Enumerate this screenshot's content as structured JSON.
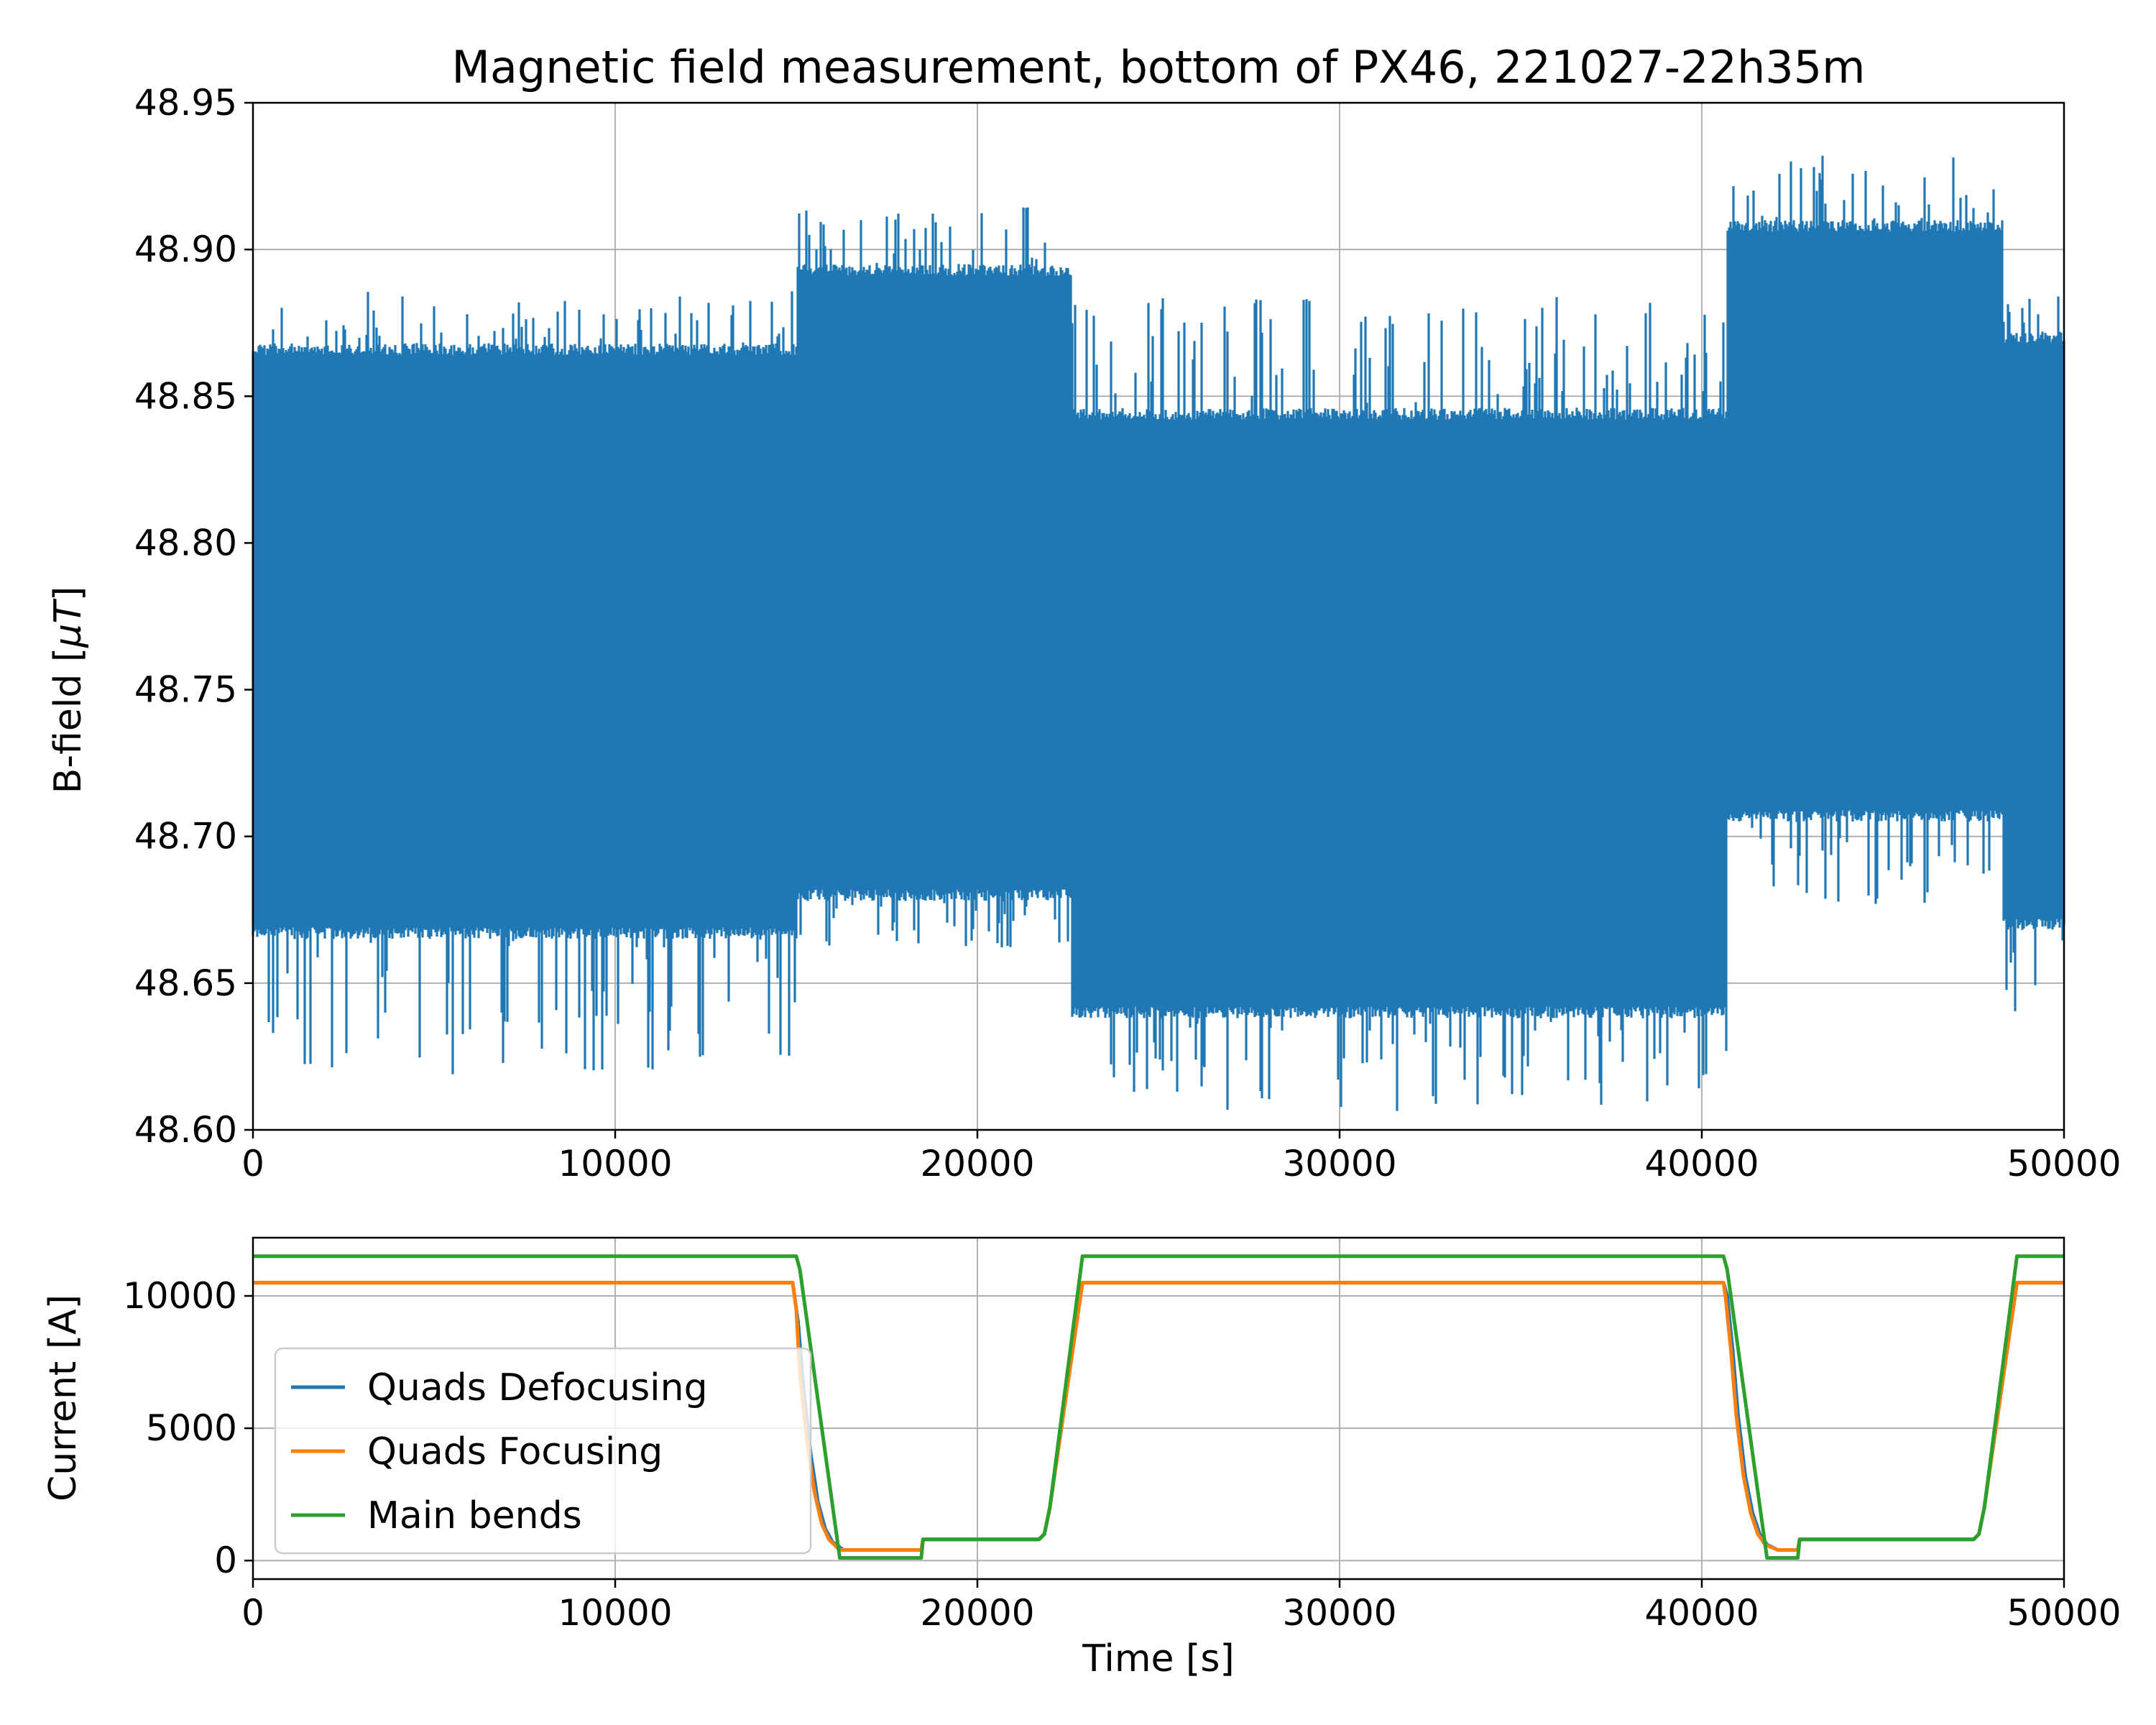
{
  "chart_data": [
    {
      "type": "line",
      "title": "Magnetic field measurement, bottom of PX46, 221027-22h35m",
      "xlabel": "",
      "ylabel": "B-field [μT]",
      "ylabel_prefix": "B-field [",
      "ylabel_unit": "μT",
      "ylabel_suffix": "]",
      "xlim": [
        0,
        50000
      ],
      "ylim": [
        48.6,
        48.95
      ],
      "xticks": [
        "0",
        "10000",
        "20000",
        "30000",
        "40000",
        "50000"
      ],
      "yticks": [
        "48.60",
        "48.65",
        "48.70",
        "48.75",
        "48.80",
        "48.85",
        "48.90",
        "48.95"
      ],
      "grid": true,
      "color": "#1f77b4",
      "series": [
        {
          "envelope": true,
          "segments": [
            {
              "x": [
                0,
                15000
              ],
              "typical_low": 48.665,
              "typical_high": 48.868,
              "spike_low": 48.617,
              "spike_high": 48.887
            },
            {
              "x": [
                15000,
                22600
              ],
              "typical_low": 48.678,
              "typical_high": 48.895,
              "spike_low": 48.662,
              "spike_high": 48.915
            },
            {
              "x": [
                22600,
                40700
              ],
              "typical_low": 48.638,
              "typical_high": 48.846,
              "spike_low": 48.606,
              "spike_high": 48.885
            },
            {
              "x": [
                40700,
                48300
              ],
              "typical_low": 48.705,
              "typical_high": 48.91,
              "spike_low": 48.677,
              "spike_high": 48.932
            },
            {
              "x": [
                48300,
                50000
              ],
              "typical_low": 48.668,
              "typical_high": 48.872,
              "spike_low": 48.64,
              "spike_high": 48.885
            }
          ]
        }
      ]
    },
    {
      "type": "line",
      "title": "",
      "xlabel": "Time [s]",
      "ylabel": "Current [A]",
      "xlim": [
        0,
        50000
      ],
      "ylim": [
        -700,
        12200
      ],
      "xticks": [
        "0",
        "10000",
        "20000",
        "30000",
        "40000",
        "50000"
      ],
      "yticks": [
        {
          "value": 0,
          "label": "0"
        },
        {
          "value": 5000,
          "label": "5000"
        },
        {
          "value": 10000,
          "label": "10000"
        }
      ],
      "grid": true,
      "legend_position": "lower-left",
      "series": [
        {
          "name": "Quads Defocusing",
          "color": "#1f77b4",
          "x": [
            0,
            14900,
            15050,
            15200,
            15400,
            15600,
            15800,
            16000,
            16300,
            18450,
            18500,
            21700,
            21850,
            22000,
            22900,
            40600,
            40700,
            40850,
            41000,
            41200,
            41400,
            41600,
            41800,
            42100,
            42650,
            42700,
            47500,
            47650,
            47800,
            48700,
            50000
          ],
          "y": [
            10500,
            10500,
            9000,
            6500,
            4000,
            2200,
            1200,
            700,
            400,
            400,
            800,
            800,
            1000,
            2000,
            10500,
            10500,
            10000,
            8000,
            5500,
            3200,
            1800,
            1000,
            600,
            400,
            400,
            800,
            800,
            1000,
            2000,
            10500,
            10500
          ]
        },
        {
          "name": "Quads Focusing",
          "color": "#ff7f0e",
          "x": [
            0,
            14900,
            15000,
            15100,
            15300,
            15500,
            15700,
            15900,
            16200,
            18450,
            18500,
            21700,
            21850,
            22000,
            22900,
            40600,
            40650,
            40800,
            40950,
            41150,
            41350,
            41550,
            41750,
            42100,
            42650,
            42700,
            47500,
            47650,
            47800,
            48700,
            50000
          ],
          "y": [
            10500,
            10500,
            9500,
            7000,
            4500,
            2600,
            1400,
            800,
            400,
            400,
            800,
            800,
            1000,
            2000,
            10500,
            10500,
            10000,
            8000,
            5500,
            3200,
            1800,
            1000,
            600,
            400,
            400,
            800,
            800,
            1000,
            2000,
            10500,
            10500
          ]
        },
        {
          "name": "Main bends",
          "color": "#2ca02c",
          "x": [
            0,
            15000,
            15100,
            16200,
            18450,
            18500,
            21700,
            21850,
            22000,
            22900,
            40600,
            40700,
            41800,
            42650,
            42700,
            47500,
            47650,
            47800,
            48700,
            50000
          ],
          "y": [
            11500,
            11500,
            11000,
            100,
            100,
            800,
            800,
            1000,
            2000,
            11500,
            11500,
            11000,
            100,
            100,
            800,
            800,
            1000,
            2000,
            11500,
            11500
          ]
        }
      ]
    }
  ]
}
